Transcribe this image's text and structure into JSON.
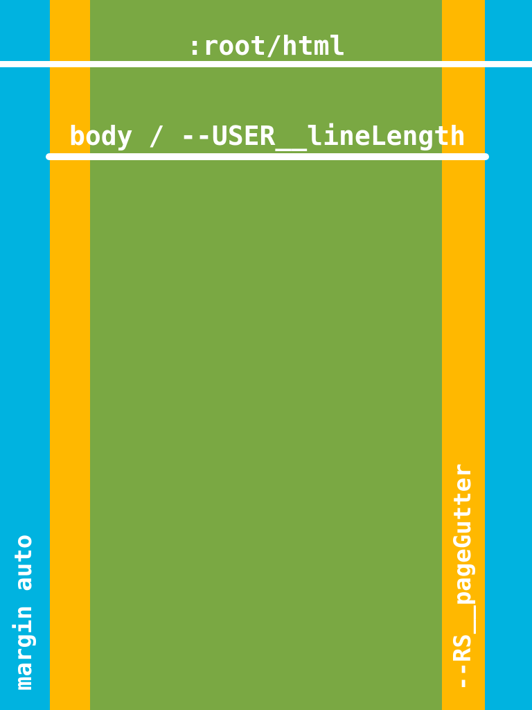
{
  "colors": {
    "margin": "#00b3e0",
    "gutter": "#ffb800",
    "content": "#7aa843",
    "label": "#ffffff"
  },
  "labels": {
    "root": ":root/html",
    "body": "body / --USER__lineLength",
    "margin": "margin auto",
    "gutter": "--RS__pageGutter"
  }
}
